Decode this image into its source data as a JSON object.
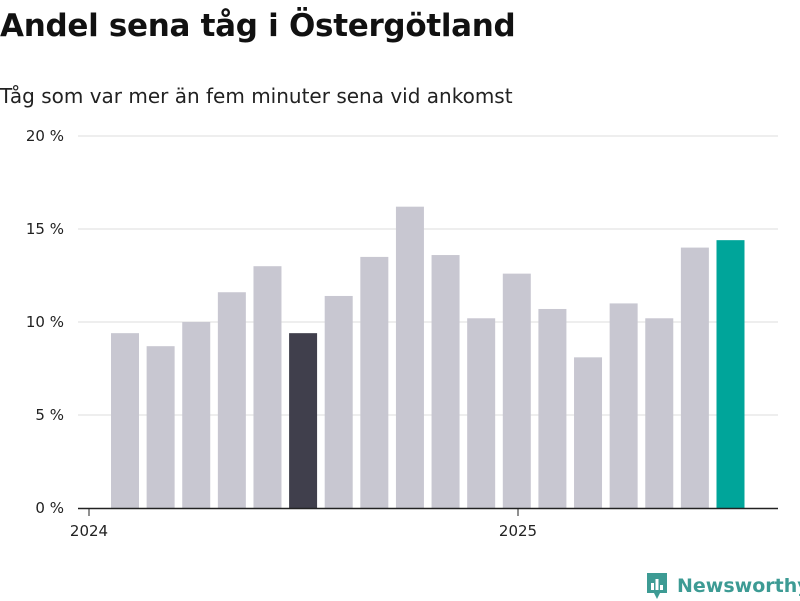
{
  "title": "Andel sena tåg i Östergötland",
  "subtitle": "Tåg som var mer än fem minuter sena vid ankomst",
  "brand": {
    "name": "Newsworthy",
    "color": "#3d9b94"
  },
  "chart_data": {
    "type": "bar",
    "title": "Andel sena tåg i Östergötland",
    "subtitle": "Tåg som var mer än fem minuter sena vid ankomst",
    "x_axis_labels": [
      "2024",
      "2025"
    ],
    "y_ticks": [
      "0 %",
      "5 %",
      "10 %",
      "15 %",
      "20 %"
    ],
    "ylim": [
      0,
      20
    ],
    "grid": true,
    "categories": [
      "2024-01",
      "2024-02",
      "2024-03",
      "2024-04",
      "2024-05",
      "2024-06",
      "2024-07",
      "2024-08",
      "2024-09",
      "2024-10",
      "2024-11",
      "2024-12",
      "2025-01",
      "2025-02",
      "2025-03",
      "2025-04",
      "2025-05",
      "2025-06"
    ],
    "values": [
      9.4,
      8.7,
      10.0,
      11.6,
      13.0,
      9.4,
      11.4,
      13.5,
      16.2,
      13.6,
      10.2,
      12.6,
      10.7,
      8.1,
      11.0,
      10.2,
      14.0,
      14.4
    ],
    "colors": {
      "default": "#c8c7d1",
      "highlight_dark": "#403f4c",
      "highlight_accent": "#00a59a"
    },
    "highlight_dark_index": 5,
    "highlight_accent_index": 17
  }
}
